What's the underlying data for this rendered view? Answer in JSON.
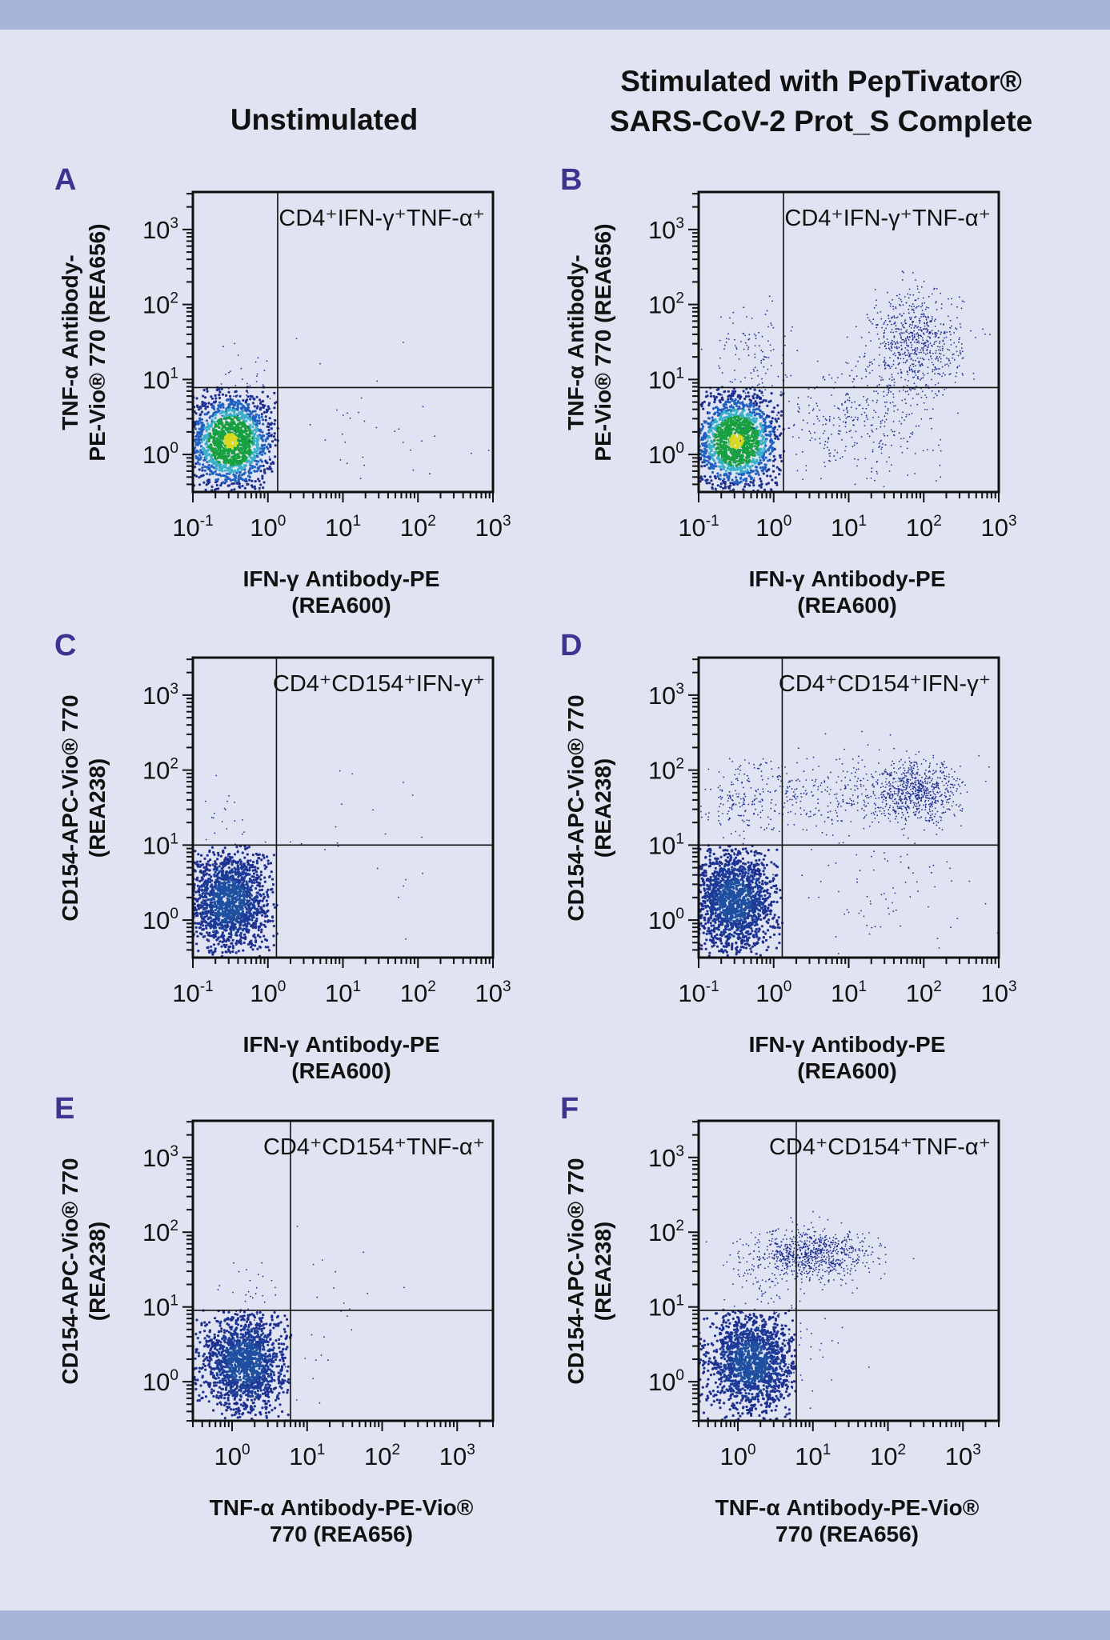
{
  "headers": {
    "unstimulated": "Unstimulated",
    "stimulated_line1": "Stimulated with PepTivator®",
    "stimulated_line2": "SARS-CoV-2 Prot_S Complete"
  },
  "colors": {
    "background": "#e0e3f1",
    "band": "#a8b4da",
    "panel_letter": "#3b3591",
    "event_dot": "#1d2f8f",
    "density_colormap": [
      "#1d2f8f",
      "#2060c0",
      "#38b0c8",
      "#18a040",
      "#d8d820"
    ]
  },
  "chart_data": [
    {
      "panel": "A",
      "type": "scatter",
      "xscale": "log",
      "yscale": "log",
      "xlim": [
        0.1,
        1000
      ],
      "ylim": [
        0.316,
        3162
      ],
      "xticks": [
        {
          "base": "10",
          "exp": "-1",
          "value": 0.1
        },
        {
          "base": "10",
          "exp": "0",
          "value": 1
        },
        {
          "base": "10",
          "exp": "1",
          "value": 10
        },
        {
          "base": "10",
          "exp": "2",
          "value": 100
        },
        {
          "base": "10",
          "exp": "3",
          "value": 1000
        }
      ],
      "yticks": [
        {
          "base": "10",
          "exp": "0",
          "value": 1
        },
        {
          "base": "10",
          "exp": "1",
          "value": 10
        },
        {
          "base": "10",
          "exp": "2",
          "value": 100
        },
        {
          "base": "10",
          "exp": "3",
          "value": 1000
        }
      ],
      "xlabel": [
        "IFN-γ Antibody-PE",
        "(REA600)"
      ],
      "ylabel": [
        "TNF-α Antibody-",
        "PE-Vio® 770 (REA656)"
      ],
      "gate": {
        "x": 1.35,
        "y": 7.8,
        "label": "CD4⁺IFN-γ⁺TNF-α⁺"
      },
      "density_colored": true,
      "populations": [
        {
          "center": [
            0.32,
            1.5
          ],
          "spread_decades": [
            0.3,
            0.33
          ],
          "events": 1500,
          "gated": "lower-left"
        },
        {
          "center": [
            0.4,
            9
          ],
          "spread_decades": [
            0.2,
            0.3
          ],
          "events": 35
        },
        {
          "center": [
            20,
            2
          ],
          "spread_decades": [
            0.8,
            0.5
          ],
          "events": 35
        }
      ]
    },
    {
      "panel": "B",
      "type": "scatter",
      "xscale": "log",
      "yscale": "log",
      "xlim": [
        0.1,
        1000
      ],
      "ylim": [
        0.316,
        3162
      ],
      "xticks": [
        {
          "base": "10",
          "exp": "-1",
          "value": 0.1
        },
        {
          "base": "10",
          "exp": "0",
          "value": 1
        },
        {
          "base": "10",
          "exp": "1",
          "value": 10
        },
        {
          "base": "10",
          "exp": "2",
          "value": 100
        },
        {
          "base": "10",
          "exp": "3",
          "value": 1000
        }
      ],
      "yticks": [
        {
          "base": "10",
          "exp": "0",
          "value": 1
        },
        {
          "base": "10",
          "exp": "1",
          "value": 10
        },
        {
          "base": "10",
          "exp": "2",
          "value": 100
        },
        {
          "base": "10",
          "exp": "3",
          "value": 1000
        }
      ],
      "xlabel": [
        "IFN-γ Antibody-PE",
        "(REA600)"
      ],
      "ylabel": [
        "TNF-α Antibody-",
        "PE-Vio® 770 (REA656)"
      ],
      "gate": {
        "x": 1.35,
        "y": 7.8,
        "label": "CD4⁺IFN-γ⁺TNF-α⁺"
      },
      "density_colored": true,
      "populations": [
        {
          "center": [
            0.32,
            1.5
          ],
          "spread_decades": [
            0.3,
            0.33
          ],
          "events": 1500,
          "gated": "lower-left"
        },
        {
          "center": [
            80,
            30
          ],
          "spread_decades": [
            0.3,
            0.35
          ],
          "events": 700
        },
        {
          "center": [
            15,
            3
          ],
          "spread_decades": [
            0.55,
            0.4
          ],
          "events": 350
        },
        {
          "center": [
            0.5,
            20
          ],
          "spread_decades": [
            0.25,
            0.35
          ],
          "events": 120
        }
      ]
    },
    {
      "panel": "C",
      "type": "scatter",
      "xscale": "log",
      "yscale": "log",
      "xlim": [
        0.1,
        1000
      ],
      "ylim": [
        0.316,
        3162
      ],
      "xticks": [
        {
          "base": "10",
          "exp": "-1",
          "value": 0.1
        },
        {
          "base": "10",
          "exp": "0",
          "value": 1
        },
        {
          "base": "10",
          "exp": "1",
          "value": 10
        },
        {
          "base": "10",
          "exp": "2",
          "value": 100
        },
        {
          "base": "10",
          "exp": "3",
          "value": 1000
        }
      ],
      "yticks": [
        {
          "base": "10",
          "exp": "0",
          "value": 1
        },
        {
          "base": "10",
          "exp": "1",
          "value": 10
        },
        {
          "base": "10",
          "exp": "2",
          "value": 100
        },
        {
          "base": "10",
          "exp": "3",
          "value": 1000
        }
      ],
      "xlabel": [
        "IFN-γ Antibody-PE",
        "(REA600)"
      ],
      "ylabel": [
        "CD154-APC-Vio® 770",
        "(REA238)"
      ],
      "gate": {
        "x": 1.3,
        "y": 10,
        "label": "CD4⁺CD154⁺IFN-γ⁺"
      },
      "density_colored": false,
      "populations": [
        {
          "center": [
            0.3,
            1.8
          ],
          "spread_decades": [
            0.28,
            0.35
          ],
          "events": 1500,
          "gated": "lower-left"
        },
        {
          "center": [
            0.3,
            20
          ],
          "spread_decades": [
            0.2,
            0.3
          ],
          "events": 25
        },
        {
          "center": [
            30,
            10
          ],
          "spread_decades": [
            0.7,
            0.6
          ],
          "events": 20
        }
      ]
    },
    {
      "panel": "D",
      "type": "scatter",
      "xscale": "log",
      "yscale": "log",
      "xlim": [
        0.1,
        1000
      ],
      "ylim": [
        0.316,
        3162
      ],
      "xticks": [
        {
          "base": "10",
          "exp": "-1",
          "value": 0.1
        },
        {
          "base": "10",
          "exp": "0",
          "value": 1
        },
        {
          "base": "10",
          "exp": "1",
          "value": 10
        },
        {
          "base": "10",
          "exp": "2",
          "value": 100
        },
        {
          "base": "10",
          "exp": "3",
          "value": 1000
        }
      ],
      "yticks": [
        {
          "base": "10",
          "exp": "0",
          "value": 1
        },
        {
          "base": "10",
          "exp": "1",
          "value": 10
        },
        {
          "base": "10",
          "exp": "2",
          "value": 100
        },
        {
          "base": "10",
          "exp": "3",
          "value": 1000
        }
      ],
      "xlabel": [
        "IFN-γ Antibody-PE",
        "(REA600)"
      ],
      "ylabel": [
        "CD154-APC-Vio® 770",
        "(REA238)"
      ],
      "gate": {
        "x": 1.3,
        "y": 10,
        "label": "CD4⁺CD154⁺IFN-γ⁺"
      },
      "density_colored": false,
      "populations": [
        {
          "center": [
            0.3,
            1.8
          ],
          "spread_decades": [
            0.28,
            0.35
          ],
          "events": 1500,
          "gated": "lower-left"
        },
        {
          "center": [
            80,
            50
          ],
          "spread_decades": [
            0.3,
            0.2
          ],
          "events": 700
        },
        {
          "center": [
            5,
            50
          ],
          "spread_decades": [
            0.6,
            0.25
          ],
          "events": 300
        },
        {
          "center": [
            0.35,
            40
          ],
          "spread_decades": [
            0.25,
            0.25
          ],
          "events": 150
        },
        {
          "center": [
            30,
            2
          ],
          "spread_decades": [
            0.6,
            0.5
          ],
          "events": 80
        }
      ]
    },
    {
      "panel": "E",
      "type": "scatter",
      "xscale": "log",
      "yscale": "log",
      "xlim": [
        0.3,
        3000
      ],
      "ylim": [
        0.3,
        3090
      ],
      "xticks": [
        {
          "base": "10",
          "exp": "0",
          "value": 1
        },
        {
          "base": "10",
          "exp": "1",
          "value": 10
        },
        {
          "base": "10",
          "exp": "2",
          "value": 100
        },
        {
          "base": "10",
          "exp": "3",
          "value": 1000
        }
      ],
      "yticks": [
        {
          "base": "10",
          "exp": "0",
          "value": 1
        },
        {
          "base": "10",
          "exp": "1",
          "value": 10
        },
        {
          "base": "10",
          "exp": "2",
          "value": 100
        },
        {
          "base": "10",
          "exp": "3",
          "value": 1000
        }
      ],
      "xlabel": [
        "TNF-α Antibody-PE-Vio®",
        "770 (REA656)"
      ],
      "ylabel": [
        "CD154-APC-Vio® 770",
        "(REA238)"
      ],
      "gate": {
        "x": 6,
        "y": 9,
        "label": "CD4⁺CD154⁺TNF-α⁺"
      },
      "density_colored": false,
      "populations": [
        {
          "center": [
            1.5,
            1.8
          ],
          "spread_decades": [
            0.3,
            0.35
          ],
          "events": 1500,
          "gated": "lower-left"
        },
        {
          "center": [
            2,
            15
          ],
          "spread_decades": [
            0.2,
            0.25
          ],
          "events": 30
        },
        {
          "center": [
            15,
            5
          ],
          "spread_decades": [
            0.4,
            0.5
          ],
          "events": 25
        }
      ]
    },
    {
      "panel": "F",
      "type": "scatter",
      "xscale": "log",
      "yscale": "log",
      "xlim": [
        0.3,
        3000
      ],
      "ylim": [
        0.3,
        3090
      ],
      "xticks": [
        {
          "base": "10",
          "exp": "0",
          "value": 1
        },
        {
          "base": "10",
          "exp": "1",
          "value": 10
        },
        {
          "base": "10",
          "exp": "2",
          "value": 100
        },
        {
          "base": "10",
          "exp": "3",
          "value": 1000
        }
      ],
      "yticks": [
        {
          "base": "10",
          "exp": "0",
          "value": 1
        },
        {
          "base": "10",
          "exp": "1",
          "value": 10
        },
        {
          "base": "10",
          "exp": "2",
          "value": 100
        },
        {
          "base": "10",
          "exp": "3",
          "value": 1000
        }
      ],
      "xlabel": [
        "TNF-α Antibody-PE-Vio®",
        "770 (REA656)"
      ],
      "ylabel": [
        "CD154-APC-Vio® 770",
        "(REA238)"
      ],
      "gate": {
        "x": 6,
        "y": 9,
        "label": "CD4⁺CD154⁺TNF-α⁺"
      },
      "density_colored": false,
      "populations": [
        {
          "center": [
            1.5,
            1.8
          ],
          "spread_decades": [
            0.3,
            0.35
          ],
          "events": 1500,
          "gated": "lower-left"
        },
        {
          "center": [
            10,
            50
          ],
          "spread_decades": [
            0.4,
            0.17
          ],
          "events": 800
        },
        {
          "center": [
            5,
            3
          ],
          "spread_decades": [
            0.4,
            0.4
          ],
          "events": 60
        },
        {
          "center": [
            2,
            20
          ],
          "spread_decades": [
            0.25,
            0.2
          ],
          "events": 60
        }
      ]
    }
  ]
}
